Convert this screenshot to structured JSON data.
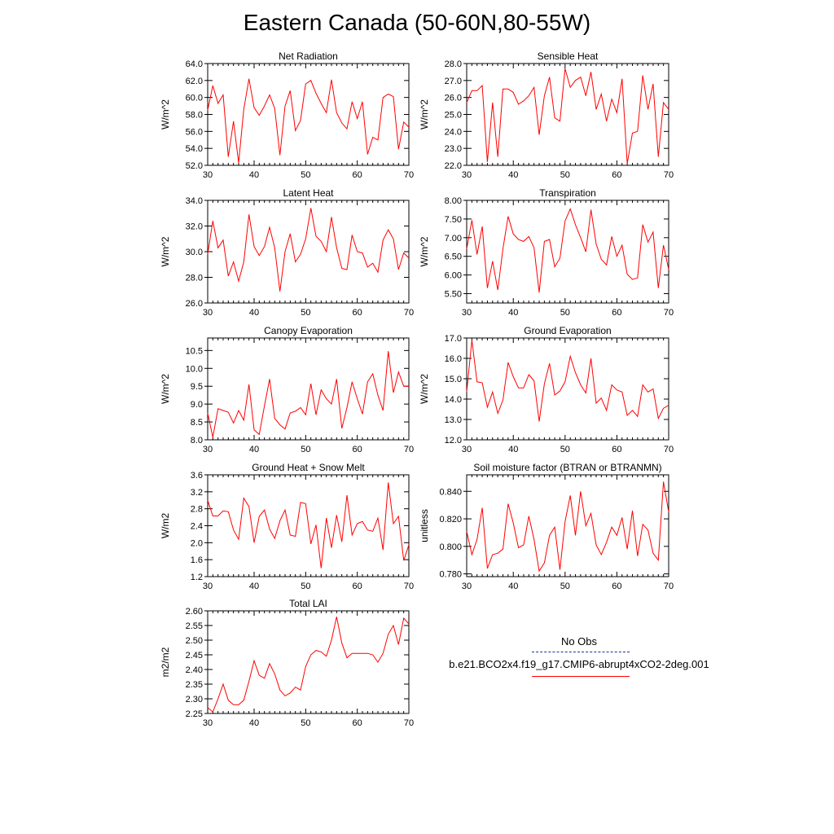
{
  "title": "Eastern Canada (50-60N,80-55W)",
  "legend": {
    "obs_label": "No Obs",
    "model_label": "b.e21.BCO2x4.f19_g17.CMIP6-abrupt4xCO2-2deg.001",
    "obs_color": "#1f2f9f",
    "model_color": "#ff0000"
  },
  "chart_data": [
    {
      "type": "line",
      "title": "Net Radiation",
      "ylabel": "W/m^2",
      "xlim": [
        31,
        70
      ],
      "ylim": [
        52,
        64
      ],
      "yticks": [
        "52.0",
        "54.0",
        "56.0",
        "58.0",
        "60.0",
        "62.0",
        "64.0"
      ],
      "xticks": [
        30,
        40,
        50,
        60,
        70
      ],
      "x": [
        31,
        32,
        33,
        34,
        35,
        36,
        37,
        38,
        39,
        40,
        41,
        42,
        43,
        44,
        45,
        46,
        47,
        48,
        49,
        50,
        51,
        52,
        53,
        54,
        55,
        56,
        57,
        58,
        59,
        60,
        61,
        62,
        63,
        64,
        65,
        66,
        67,
        68,
        69,
        70
      ],
      "series": [
        {
          "values": [
            58.5,
            61.4,
            59.3,
            60.3,
            53.0,
            57.2,
            52.3,
            58.6,
            62.2,
            58.8,
            57.9,
            59.0,
            60.3,
            58.7,
            53.2,
            59.0,
            60.8,
            56.1,
            57.3,
            61.6,
            62.0,
            60.5,
            59.3,
            58.2,
            62.1,
            58.2,
            57.0,
            56.3,
            59.5,
            57.5,
            59.5,
            53.3,
            55.3,
            55.0,
            60.0,
            60.4,
            60.1,
            53.9,
            57.1,
            56.5
          ]
        }
      ]
    },
    {
      "type": "line",
      "title": "Sensible Heat",
      "ylabel": "W/m^2",
      "xlim": [
        31,
        70
      ],
      "ylim": [
        22,
        28
      ],
      "yticks": [
        "22.0",
        "23.0",
        "24.0",
        "25.0",
        "26.0",
        "27.0",
        "28.0"
      ],
      "xticks": [
        30,
        40,
        50,
        60,
        70
      ],
      "x": [
        31,
        32,
        33,
        34,
        35,
        36,
        37,
        38,
        39,
        40,
        41,
        42,
        43,
        44,
        45,
        46,
        47,
        48,
        49,
        50,
        51,
        52,
        53,
        54,
        55,
        56,
        57,
        58,
        59,
        60,
        61,
        62,
        63,
        64,
        65,
        66,
        67,
        68,
        69,
        70
      ],
      "series": [
        {
          "values": [
            25.7,
            26.4,
            26.4,
            26.7,
            22.2,
            25.7,
            22.5,
            26.5,
            26.5,
            26.3,
            25.6,
            25.8,
            26.1,
            26.6,
            23.8,
            26.1,
            27.2,
            24.8,
            24.6,
            27.7,
            26.6,
            27.0,
            27.2,
            26.1,
            27.5,
            25.3,
            26.2,
            24.6,
            25.9,
            25.1,
            27.1,
            22.1,
            23.9,
            24.0,
            27.3,
            25.3,
            26.8,
            22.5,
            25.7,
            25.3
          ]
        }
      ]
    },
    {
      "type": "line",
      "title": "Latent Heat",
      "ylabel": "W/m^2",
      "xlim": [
        31,
        70
      ],
      "ylim": [
        26,
        34
      ],
      "yticks": [
        "26.0",
        "28.0",
        "30.0",
        "32.0",
        "34.0"
      ],
      "xticks": [
        30,
        40,
        50,
        60,
        70
      ],
      "x": [
        31,
        32,
        33,
        34,
        35,
        36,
        37,
        38,
        39,
        40,
        41,
        42,
        43,
        44,
        45,
        46,
        47,
        48,
        49,
        50,
        51,
        52,
        53,
        54,
        55,
        56,
        57,
        58,
        59,
        60,
        61,
        62,
        63,
        64,
        65,
        66,
        67,
        68,
        69,
        70
      ],
      "series": [
        {
          "values": [
            29.8,
            32.4,
            30.3,
            30.9,
            28.1,
            29.2,
            27.7,
            29.2,
            32.9,
            30.4,
            29.7,
            30.4,
            31.9,
            30.3,
            26.9,
            30.0,
            31.4,
            29.2,
            29.8,
            31.0,
            33.4,
            31.2,
            30.8,
            30.0,
            32.7,
            30.3,
            28.7,
            28.6,
            31.3,
            30.0,
            29.9,
            28.8,
            29.1,
            28.4,
            30.9,
            31.7,
            31.0,
            28.6,
            29.9,
            29.5
          ]
        }
      ]
    },
    {
      "type": "line",
      "title": "Transpiration",
      "ylabel": "W/m^2",
      "xlim": [
        31,
        70
      ],
      "ylim": [
        5.25,
        8.0
      ],
      "yticks": [
        "5.50",
        "6.00",
        "6.50",
        "7.00",
        "7.50",
        "8.00"
      ],
      "xticks": [
        30,
        40,
        50,
        60,
        70
      ],
      "x": [
        31,
        32,
        33,
        34,
        35,
        36,
        37,
        38,
        39,
        40,
        41,
        42,
        43,
        44,
        45,
        46,
        47,
        48,
        49,
        50,
        51,
        52,
        53,
        54,
        55,
        56,
        57,
        58,
        59,
        60,
        61,
        62,
        63,
        64,
        65,
        66,
        67,
        68,
        69,
        70
      ],
      "series": [
        {
          "values": [
            6.7,
            7.47,
            6.55,
            7.3,
            5.65,
            6.37,
            5.6,
            6.7,
            7.57,
            7.1,
            6.95,
            6.9,
            7.03,
            6.73,
            5.53,
            6.9,
            6.95,
            6.22,
            6.45,
            7.45,
            7.77,
            7.35,
            7.0,
            6.62,
            7.75,
            6.83,
            6.42,
            6.27,
            7.03,
            6.5,
            6.8,
            6.02,
            5.88,
            5.92,
            7.35,
            6.88,
            7.15,
            5.65,
            6.8,
            6.15
          ]
        }
      ]
    },
    {
      "type": "line",
      "title": "Canopy Evaporation",
      "ylabel": "W/m^2",
      "xlim": [
        31,
        70
      ],
      "ylim": [
        8.0,
        10.85
      ],
      "yticks": [
        "8.0",
        "8.5",
        "9.0",
        "9.5",
        "10.0",
        "10.5"
      ],
      "xticks": [
        30,
        40,
        50,
        60,
        70
      ],
      "x": [
        31,
        32,
        33,
        34,
        35,
        36,
        37,
        38,
        39,
        40,
        41,
        42,
        43,
        44,
        45,
        46,
        47,
        48,
        49,
        50,
        51,
        52,
        53,
        54,
        55,
        56,
        57,
        58,
        59,
        60,
        61,
        62,
        63,
        64,
        65,
        66,
        67,
        68,
        69,
        70
      ],
      "series": [
        {
          "values": [
            8.75,
            8.07,
            8.87,
            8.82,
            8.77,
            8.47,
            8.82,
            8.55,
            9.55,
            8.28,
            8.15,
            8.95,
            9.7,
            8.6,
            8.42,
            8.3,
            8.75,
            8.8,
            8.9,
            8.7,
            9.57,
            8.7,
            9.4,
            9.15,
            9.0,
            9.7,
            8.32,
            8.9,
            9.62,
            9.15,
            8.72,
            9.62,
            9.85,
            9.25,
            8.82,
            10.48,
            9.32,
            9.9,
            9.5,
            9.5
          ]
        }
      ]
    },
    {
      "type": "line",
      "title": "Ground Evaporation",
      "ylabel": "W/m^2",
      "xlim": [
        31,
        70
      ],
      "ylim": [
        12,
        17
      ],
      "yticks": [
        "12.0",
        "13.0",
        "14.0",
        "15.0",
        "16.0",
        "17.0"
      ],
      "xticks": [
        30,
        40,
        50,
        60,
        70
      ],
      "x": [
        31,
        32,
        33,
        34,
        35,
        36,
        37,
        38,
        39,
        40,
        41,
        42,
        43,
        44,
        45,
        46,
        47,
        48,
        49,
        50,
        51,
        52,
        53,
        54,
        55,
        56,
        57,
        58,
        59,
        60,
        61,
        62,
        63,
        64,
        65,
        66,
        67,
        68,
        69,
        70
      ],
      "series": [
        {
          "values": [
            14.35,
            16.9,
            14.85,
            14.8,
            13.6,
            14.35,
            13.3,
            13.95,
            15.8,
            15.1,
            14.55,
            14.55,
            15.2,
            14.9,
            12.9,
            14.75,
            15.75,
            14.2,
            14.4,
            14.85,
            16.1,
            15.3,
            14.7,
            14.3,
            16.0,
            13.8,
            14.05,
            13.45,
            14.7,
            14.45,
            14.35,
            13.2,
            13.45,
            13.15,
            14.7,
            14.35,
            14.5,
            13.05,
            13.55,
            13.7
          ]
        }
      ]
    },
    {
      "type": "line",
      "title": "Ground Heat + Snow Melt",
      "ylabel": "W/m2",
      "xlim": [
        31,
        70
      ],
      "ylim": [
        1.2,
        3.6
      ],
      "yticks": [
        "1.2",
        "1.6",
        "2.0",
        "2.4",
        "2.8",
        "3.2",
        "3.6"
      ],
      "xticks": [
        30,
        40,
        50,
        60,
        70
      ],
      "x": [
        31,
        32,
        33,
        34,
        35,
        36,
        37,
        38,
        39,
        40,
        41,
        42,
        43,
        44,
        45,
        46,
        47,
        48,
        49,
        50,
        51,
        52,
        53,
        54,
        55,
        56,
        57,
        58,
        59,
        60,
        61,
        62,
        63,
        64,
        65,
        66,
        67,
        68,
        69,
        70
      ],
      "series": [
        {
          "values": [
            3.0,
            2.63,
            2.63,
            2.75,
            2.73,
            2.3,
            2.08,
            3.05,
            2.85,
            2.0,
            2.62,
            2.77,
            2.32,
            2.1,
            2.52,
            2.77,
            2.18,
            2.15,
            2.95,
            2.92,
            1.97,
            2.42,
            1.4,
            2.58,
            1.88,
            2.65,
            2.02,
            3.12,
            2.18,
            2.45,
            2.5,
            2.3,
            2.27,
            2.58,
            1.83,
            3.42,
            2.45,
            2.62,
            1.58,
            1.95
          ]
        }
      ]
    },
    {
      "type": "line",
      "title": "Soil moisture factor (BTRAN or BTRANMN)",
      "ylabel": "unitless",
      "xlim": [
        31,
        70
      ],
      "ylim": [
        0.778,
        0.852
      ],
      "yticks": [
        "0.780",
        "0.800",
        "0.820",
        "0.840"
      ],
      "xticks": [
        30,
        40,
        50,
        60,
        70
      ],
      "x": [
        31,
        32,
        33,
        34,
        35,
        36,
        37,
        38,
        39,
        40,
        41,
        42,
        43,
        44,
        45,
        46,
        47,
        48,
        49,
        50,
        51,
        52,
        53,
        54,
        55,
        56,
        57,
        58,
        59,
        60,
        61,
        62,
        63,
        64,
        65,
        66,
        67,
        68,
        69,
        70
      ],
      "series": [
        {
          "values": [
            0.811,
            0.794,
            0.805,
            0.828,
            0.784,
            0.794,
            0.795,
            0.798,
            0.831,
            0.817,
            0.799,
            0.801,
            0.822,
            0.805,
            0.782,
            0.788,
            0.808,
            0.814,
            0.783,
            0.818,
            0.837,
            0.808,
            0.84,
            0.815,
            0.824,
            0.801,
            0.794,
            0.803,
            0.814,
            0.808,
            0.821,
            0.798,
            0.826,
            0.793,
            0.816,
            0.812,
            0.795,
            0.79,
            0.847,
            0.825
          ]
        }
      ]
    },
    {
      "type": "line",
      "title": "Total LAI",
      "ylabel": "m2/m2",
      "xlim": [
        31,
        70
      ],
      "ylim": [
        2.25,
        2.6
      ],
      "yticks": [
        "2.25",
        "2.30",
        "2.35",
        "2.40",
        "2.45",
        "2.50",
        "2.55",
        "2.60"
      ],
      "xticks": [
        30,
        40,
        50,
        60,
        70
      ],
      "x": [
        31,
        32,
        33,
        34,
        35,
        36,
        37,
        38,
        39,
        40,
        41,
        42,
        43,
        44,
        45,
        46,
        47,
        48,
        49,
        50,
        51,
        52,
        53,
        54,
        55,
        56,
        57,
        58,
        59,
        60,
        61,
        62,
        63,
        64,
        65,
        66,
        67,
        68,
        69,
        70
      ],
      "series": [
        {
          "values": [
            2.27,
            2.255,
            2.3,
            2.35,
            2.295,
            2.28,
            2.28,
            2.295,
            2.36,
            2.43,
            2.38,
            2.37,
            2.42,
            2.385,
            2.33,
            2.31,
            2.32,
            2.34,
            2.33,
            2.41,
            2.45,
            2.465,
            2.46,
            2.445,
            2.5,
            2.58,
            2.49,
            2.44,
            2.455,
            2.455,
            2.455,
            2.455,
            2.45,
            2.425,
            2.455,
            2.52,
            2.55,
            2.485,
            2.575,
            2.555
          ]
        }
      ]
    }
  ]
}
